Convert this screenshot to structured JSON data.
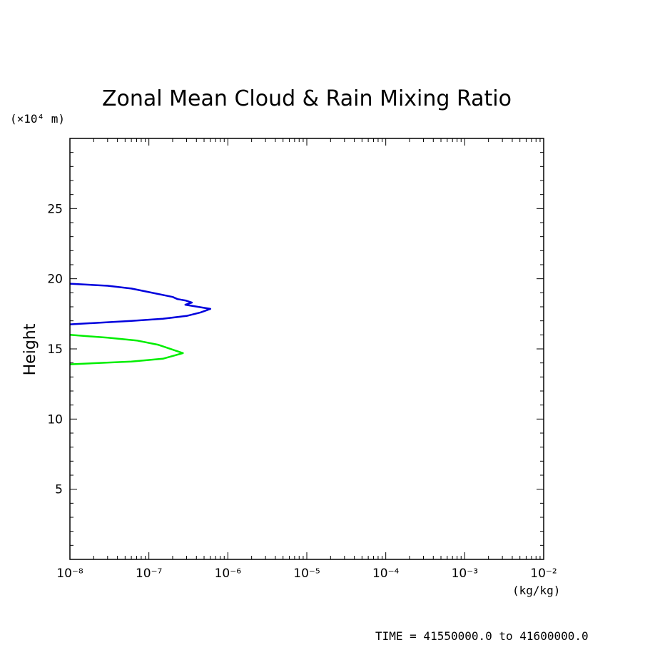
{
  "chart_data": {
    "type": "line",
    "title": "Zonal Mean Cloud & Rain Mixing Ratio",
    "ylabel": "Height",
    "yunit": "(×10⁴ m)",
    "xunit": "(kg/kg)",
    "footer": "TIME = 41550000.0 to 41600000.0",
    "xscale": "log",
    "xlim": [
      1e-08,
      0.01
    ],
    "ylim": [
      0,
      30
    ],
    "yticks": [
      5,
      10,
      15,
      20,
      25
    ],
    "ytick_labels": [
      "5",
      "10",
      "15",
      "20",
      "25"
    ],
    "xticks": [
      -8,
      -7,
      -6,
      -5,
      -4,
      -3,
      -2
    ],
    "xtick_labels": [
      "10⁻⁸",
      "10⁻⁷",
      "10⁻⁶",
      "10⁻⁵",
      "10⁻⁴",
      "10⁻³",
      "10⁻²"
    ],
    "grid": false,
    "series": [
      {
        "color": "#0000dd",
        "points": [
          [
            1e-08,
            19.65
          ],
          [
            3e-08,
            19.5
          ],
          [
            6e-08,
            19.3
          ],
          [
            1e-07,
            19.05
          ],
          [
            2e-07,
            18.7
          ],
          [
            2.3e-07,
            18.55
          ],
          [
            2.9e-07,
            18.45
          ],
          [
            3.5e-07,
            18.3
          ],
          [
            2.9e-07,
            18.15
          ],
          [
            6e-07,
            17.85
          ],
          [
            4.5e-07,
            17.6
          ],
          [
            3e-07,
            17.35
          ],
          [
            1.5e-07,
            17.15
          ],
          [
            6e-08,
            17.0
          ],
          [
            1e-08,
            16.75
          ]
        ]
      },
      {
        "color": "#00ee00",
        "points": [
          [
            1e-08,
            16.0
          ],
          [
            3e-08,
            15.8
          ],
          [
            7e-08,
            15.6
          ],
          [
            1.3e-07,
            15.3
          ],
          [
            2.7e-07,
            14.7
          ],
          [
            1.5e-07,
            14.3
          ],
          [
            6e-08,
            14.1
          ],
          [
            1e-08,
            13.9
          ]
        ]
      }
    ]
  }
}
